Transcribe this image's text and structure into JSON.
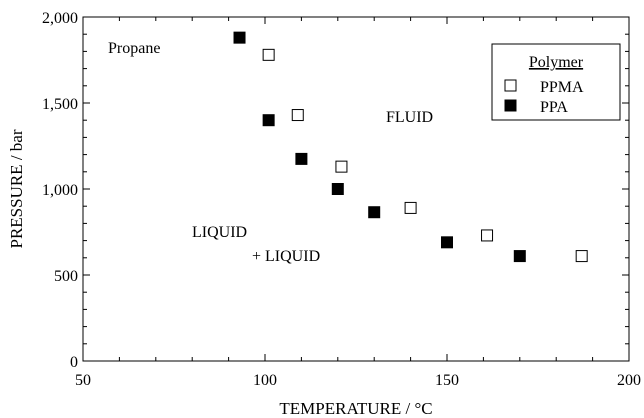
{
  "chart_data": {
    "type": "scatter",
    "xlabel": "TEMPERATURE / °C",
    "ylabel": "PRESSURE / bar",
    "xlim": [
      50,
      200
    ],
    "ylim": [
      0,
      2000
    ],
    "x_ticks": [
      50,
      100,
      150,
      200
    ],
    "x_tick_labels": [
      "50",
      "100",
      "150",
      "200"
    ],
    "y_ticks": [
      0,
      500,
      1000,
      1500,
      2000
    ],
    "y_tick_labels": [
      "0",
      "500",
      "1,000",
      "1,500",
      "2,000"
    ],
    "grid": false,
    "legend": {
      "title": "Polymer",
      "position": "top-right"
    },
    "series": [
      {
        "name": "PPMA",
        "marker": "open-square",
        "color": "#000000",
        "points": [
          {
            "x": 101,
            "y": 1780
          },
          {
            "x": 109,
            "y": 1430
          },
          {
            "x": 121,
            "y": 1130
          },
          {
            "x": 140,
            "y": 890
          },
          {
            "x": 161,
            "y": 730
          },
          {
            "x": 187,
            "y": 610
          }
        ]
      },
      {
        "name": "PPA",
        "marker": "filled-square",
        "color": "#000000",
        "points": [
          {
            "x": 93,
            "y": 1880
          },
          {
            "x": 101,
            "y": 1400
          },
          {
            "x": 110,
            "y": 1175
          },
          {
            "x": 120,
            "y": 1000
          },
          {
            "x": 130,
            "y": 865
          },
          {
            "x": 150,
            "y": 690
          },
          {
            "x": 170,
            "y": 610
          }
        ]
      }
    ],
    "annotations": [
      {
        "id": "propane",
        "text": "Propane"
      },
      {
        "id": "fluid",
        "text": "FLUID"
      },
      {
        "id": "liquid",
        "text": "LIQUID"
      },
      {
        "id": "liquid2",
        "text": "+ LIQUID"
      }
    ]
  }
}
